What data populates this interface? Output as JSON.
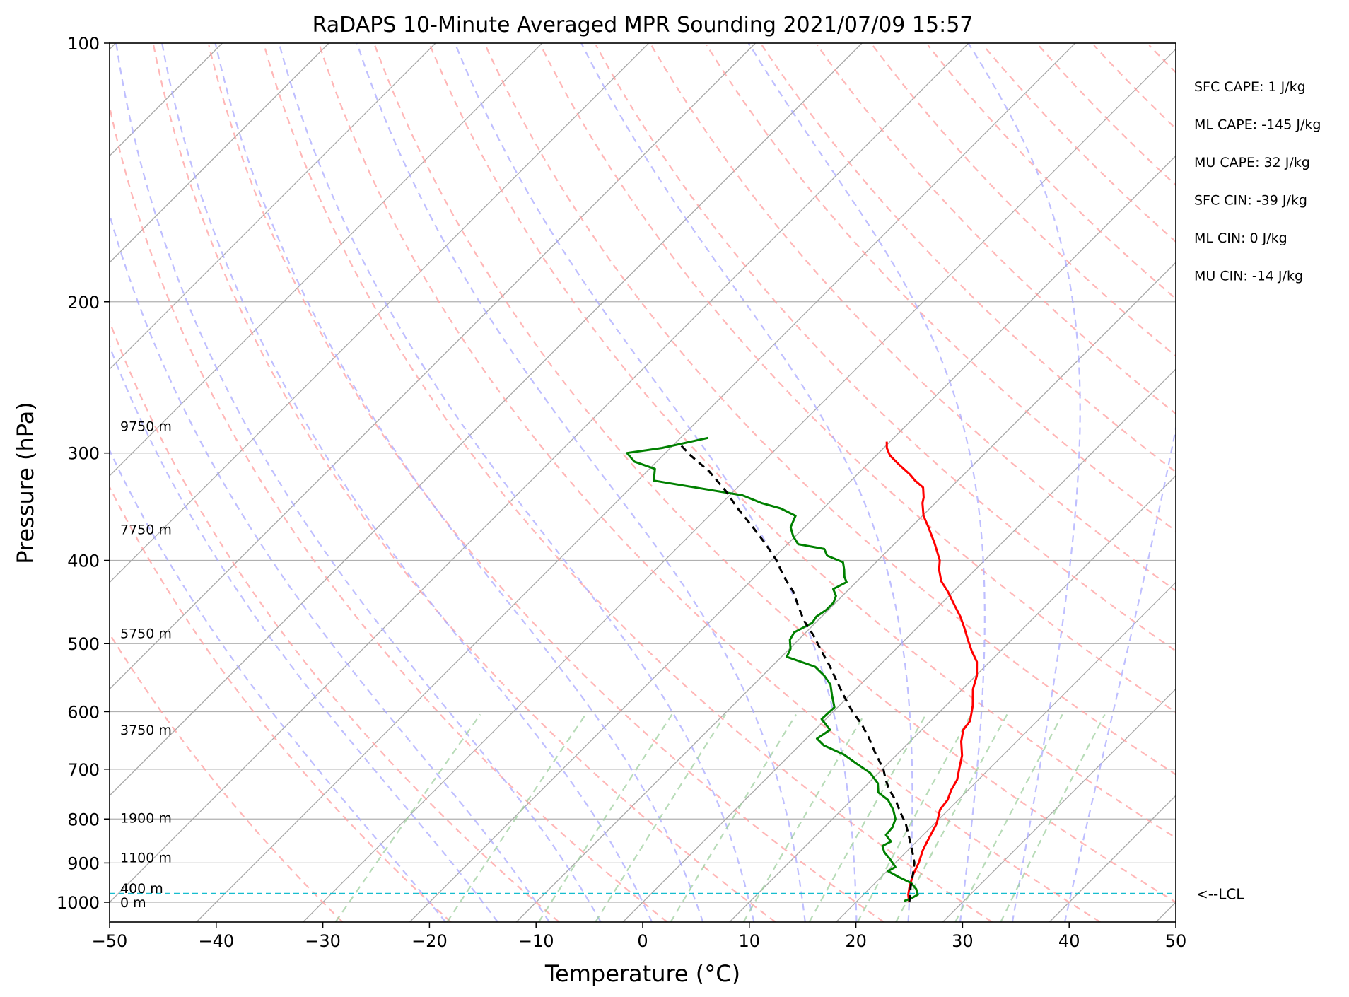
{
  "chart_data": {
    "type": "line",
    "title": "RaDAPS 10-Minute Averaged MPR Sounding 2021/07/09 15:57",
    "xlabel": "Temperature (°C)",
    "ylabel": "Pressure (hPa)",
    "xlim": [
      -50,
      50
    ],
    "ylim": [
      1050,
      100
    ],
    "y_scale": "log",
    "skew_t": true,
    "x_ticks": [
      "−50",
      "−40",
      "−30",
      "−20",
      "−10",
      "0",
      "10",
      "20",
      "30",
      "40",
      "50"
    ],
    "x_tick_values": [
      -50,
      -40,
      -30,
      -20,
      -10,
      0,
      10,
      20,
      30,
      40,
      50
    ],
    "y_ticks": [
      "100",
      "200",
      "300",
      "400",
      "500",
      "600",
      "700",
      "800",
      "900",
      "1000"
    ],
    "y_tick_values": [
      100,
      200,
      300,
      400,
      500,
      600,
      700,
      800,
      900,
      1000
    ],
    "grid": true,
    "height_labels": [
      {
        "text": "9750 m",
        "p": 279
      },
      {
        "text": "7750 m",
        "p": 368
      },
      {
        "text": "5750 m",
        "p": 486
      },
      {
        "text": "3750 m",
        "p": 630
      },
      {
        "text": "1900 m",
        "p": 797
      },
      {
        "text": "1100 m",
        "p": 887
      },
      {
        "text": "400 m",
        "p": 963
      },
      {
        "text": "0 m",
        "p": 1000
      }
    ],
    "stats": [
      "SFC CAPE: 1 J/kg",
      "ML CAPE: -145 J/kg",
      "MU CAPE: 32 J/kg",
      "SFC CIN: -39 J/kg",
      "ML CIN: 0 J/kg",
      "MU CIN: -14 J/kg"
    ],
    "lcl": {
      "label": "<--LCL",
      "p": 977,
      "color": "#17becf"
    },
    "series": [
      {
        "color": "#ff0000",
        "points": [
          [
            25.0,
            1000
          ],
          [
            24.2,
            980
          ],
          [
            23.6,
            960
          ],
          [
            22.8,
            930
          ],
          [
            22.2,
            900
          ],
          [
            21.4,
            870
          ],
          [
            21.0,
            850
          ],
          [
            20.2,
            810
          ],
          [
            19.2,
            780
          ],
          [
            19.0,
            760
          ],
          [
            18.4,
            740
          ],
          [
            18.0,
            720
          ],
          [
            17.2,
            700
          ],
          [
            16.2,
            675
          ],
          [
            14.8,
            650
          ],
          [
            13.9,
            630
          ],
          [
            13.7,
            615
          ],
          [
            12.5,
            590
          ],
          [
            11.0,
            565
          ],
          [
            10.1,
            545
          ],
          [
            8.8,
            525
          ],
          [
            7.3,
            510
          ],
          [
            5.9,
            495
          ],
          [
            4.5,
            480
          ],
          [
            3.0,
            465
          ],
          [
            1.5,
            452
          ],
          [
            -0.5,
            435
          ],
          [
            -2.1,
            423
          ],
          [
            -3.4,
            410
          ],
          [
            -4.2,
            400
          ],
          [
            -6.3,
            382
          ],
          [
            -8.5,
            365
          ],
          [
            -9.9,
            355
          ],
          [
            -11.2,
            343
          ],
          [
            -11.6,
            338
          ],
          [
            -12.6,
            329
          ],
          [
            -14.0,
            323
          ],
          [
            -15.0,
            318
          ],
          [
            -17.1,
            309
          ],
          [
            -18.7,
            302
          ],
          [
            -19.7,
            296
          ],
          [
            -20.3,
            291
          ]
        ]
      },
      {
        "color": "#008000",
        "points": [
          [
            24.4,
            997
          ],
          [
            24.8,
            990
          ],
          [
            25.1,
            980
          ],
          [
            24.4,
            965
          ],
          [
            23.4,
            950
          ],
          [
            21.7,
            935
          ],
          [
            20.1,
            920
          ],
          [
            20.4,
            910
          ],
          [
            19.1,
            890
          ],
          [
            18.0,
            875
          ],
          [
            17.2,
            860
          ],
          [
            17.6,
            850
          ],
          [
            16.5,
            835
          ],
          [
            16.4,
            818
          ],
          [
            15.9,
            800
          ],
          [
            14.8,
            780
          ],
          [
            13.4,
            760
          ],
          [
            11.8,
            745
          ],
          [
            10.9,
            727
          ],
          [
            9.2,
            707
          ],
          [
            7.1,
            690
          ],
          [
            5.0,
            673
          ],
          [
            2.3,
            657
          ],
          [
            1.0,
            645
          ],
          [
            1.4,
            630
          ],
          [
            -0.4,
            612
          ],
          [
            -0.3,
            593
          ],
          [
            -1.6,
            575
          ],
          [
            -2.8,
            558
          ],
          [
            -4.2,
            545
          ],
          [
            -5.9,
            532
          ],
          [
            -9.5,
            518
          ],
          [
            -9.9,
            507
          ],
          [
            -10.8,
            495
          ],
          [
            -11.1,
            485
          ],
          [
            -10.3,
            473
          ],
          [
            -10.5,
            465
          ],
          [
            -10.2,
            457
          ],
          [
            -10.2,
            448
          ],
          [
            -10.6,
            440
          ],
          [
            -11.5,
            432
          ],
          [
            -10.9,
            424
          ],
          [
            -11.6,
            418
          ],
          [
            -12.3,
            410
          ],
          [
            -13.1,
            402
          ],
          [
            -15.2,
            395
          ],
          [
            -16.1,
            388
          ],
          [
            -19.0,
            383
          ],
          [
            -20.2,
            375
          ],
          [
            -21.3,
            366
          ],
          [
            -21.9,
            355
          ],
          [
            -24.0,
            348
          ],
          [
            -26.3,
            343
          ],
          [
            -28.8,
            336
          ],
          [
            -38.5,
            323
          ],
          [
            -39.5,
            313
          ],
          [
            -42.1,
            307
          ],
          [
            -43.6,
            300
          ],
          [
            -40.8,
            296
          ],
          [
            -37.4,
            288
          ]
        ]
      },
      {
        "color": "#000000",
        "dashed": true,
        "points": [
          [
            25.0,
            1000
          ],
          [
            24.4,
            980
          ],
          [
            23.7,
            960
          ],
          [
            22.8,
            930
          ],
          [
            21.8,
            900
          ],
          [
            20.4,
            870
          ],
          [
            19.4,
            850
          ],
          [
            17.3,
            810
          ],
          [
            16.0,
            790
          ],
          [
            14.1,
            760
          ],
          [
            12.6,
            740
          ],
          [
            11.3,
            720
          ],
          [
            10.1,
            700
          ],
          [
            7.8,
            670
          ],
          [
            5.9,
            645
          ],
          [
            3.8,
            620
          ],
          [
            1.8,
            600
          ],
          [
            -0.5,
            575
          ],
          [
            -2.8,
            550
          ],
          [
            -4.7,
            530
          ],
          [
            -6.8,
            510
          ],
          [
            -8.9,
            490
          ],
          [
            -11.3,
            470
          ],
          [
            -13.2,
            452
          ],
          [
            -15.0,
            435
          ],
          [
            -17.4,
            417
          ],
          [
            -19.5,
            400
          ],
          [
            -22.2,
            382
          ],
          [
            -25.0,
            365
          ],
          [
            -28.2,
            347
          ],
          [
            -30.8,
            332
          ],
          [
            -34.2,
            315
          ],
          [
            -37.4,
            302
          ],
          [
            -39.7,
            292
          ]
        ]
      }
    ]
  }
}
